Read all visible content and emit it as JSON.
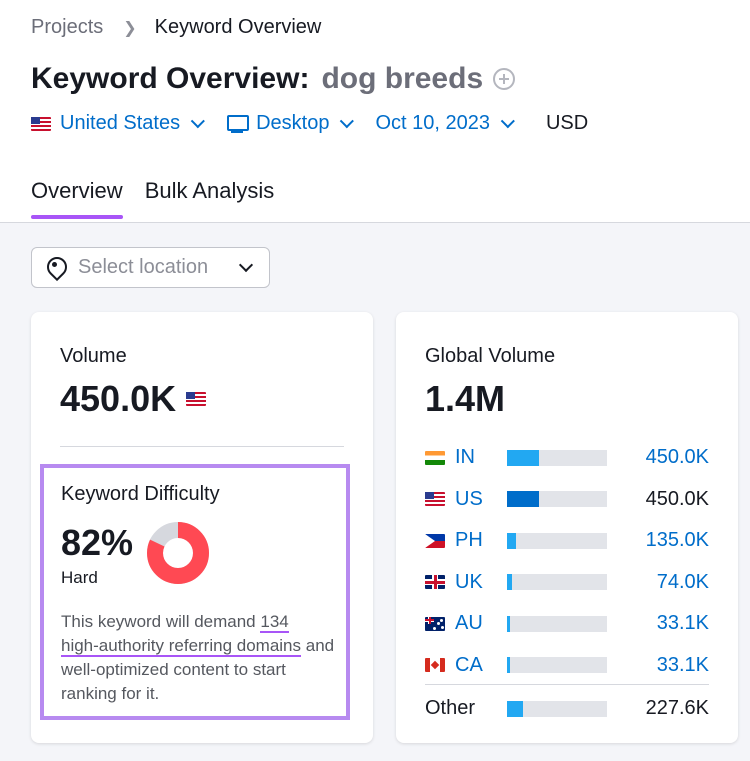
{
  "breadcrumb": {
    "projects": "Projects",
    "current": "Keyword Overview"
  },
  "header": {
    "title": "Keyword Overview:",
    "keyword": "dog breeds"
  },
  "filters": {
    "country": "United States",
    "device": "Desktop",
    "date": "Oct 10, 2023",
    "currency": "USD"
  },
  "tabs": [
    {
      "label": "Overview",
      "active": true
    },
    {
      "label": "Bulk Analysis",
      "active": false
    }
  ],
  "location": {
    "placeholder": "Select location"
  },
  "volume": {
    "label": "Volume",
    "value": "450.0K",
    "country_icon": "us-flag-icon"
  },
  "difficulty": {
    "label": "Keyword Difficulty",
    "percent": "82%",
    "percent_value": 82,
    "level": "Hard",
    "desc_before": "This keyword will demand ",
    "desc_number": "134",
    "desc_link": "high-authority referring domains",
    "desc_after": " and well-optimized content to start ranking for it.",
    "colors": {
      "filled": "#ff4953",
      "empty": "#d6d8de"
    }
  },
  "global_volume": {
    "label": "Global Volume",
    "value": "1.4M",
    "countries": [
      {
        "code": "IN",
        "value": "450.0K",
        "share": 0.32
      },
      {
        "code": "US",
        "value": "450.0K",
        "share": 0.32
      },
      {
        "code": "PH",
        "value": "135.0K",
        "share": 0.09
      },
      {
        "code": "UK",
        "value": "74.0K",
        "share": 0.05
      },
      {
        "code": "AU",
        "value": "33.1K",
        "share": 0.03
      },
      {
        "code": "CA",
        "value": "33.1K",
        "share": 0.03
      }
    ],
    "other": {
      "label": "Other",
      "value": "227.6K",
      "share": 0.16
    },
    "colors": {
      "bar": "#22a8f2",
      "bar_selected": "#006dca",
      "track": "#e2e4e9"
    }
  }
}
